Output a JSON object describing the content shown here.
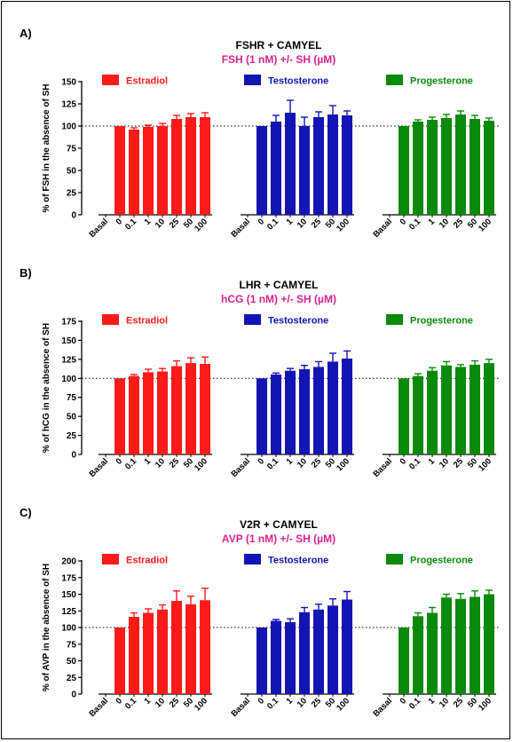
{
  "chart_data": [
    {
      "type": "bar",
      "panel_label": "A)",
      "title": "FSHR + CAMYEL",
      "subtitle": "FSH (1 nM) +/- SH (µM)",
      "ylabel": "% of FSH in the absence of SH",
      "ylim": [
        0,
        150
      ],
      "yticks": [
        0,
        25,
        50,
        75,
        100,
        125,
        150
      ],
      "reference_line": 100,
      "categories": [
        "Basal",
        "0",
        "0.1",
        "1",
        "10",
        "25",
        "50",
        "100"
      ],
      "series": [
        {
          "name": "Estradiol",
          "color": "#ff1a1a",
          "values": [
            null,
            100,
            96,
            99,
            100,
            108,
            110,
            110
          ],
          "errors": [
            0,
            0,
            2,
            2,
            3,
            4,
            4,
            5
          ]
        },
        {
          "name": "Testosterone",
          "color": "#1414b4",
          "values": [
            null,
            100,
            105,
            115,
            100,
            110,
            113,
            112
          ],
          "errors": [
            0,
            0,
            7,
            14,
            10,
            6,
            10,
            5
          ]
        },
        {
          "name": "Progesterone",
          "color": "#0a8a0a",
          "values": [
            null,
            100,
            105,
            107,
            109,
            113,
            108,
            106
          ],
          "errors": [
            0,
            0,
            2,
            3,
            4,
            4,
            4,
            3
          ]
        }
      ]
    },
    {
      "type": "bar",
      "panel_label": "B)",
      "title": "LHR + CAMYEL",
      "subtitle": "hCG (1 nM) +/- SH (µM)",
      "ylabel": "% of hCG in the absence of SH",
      "ylim": [
        0,
        175
      ],
      "yticks": [
        0,
        25,
        50,
        75,
        100,
        125,
        150,
        175
      ],
      "reference_line": 100,
      "categories": [
        "Basal",
        "0",
        "0.1",
        "1",
        "10",
        "25",
        "50",
        "100"
      ],
      "series": [
        {
          "name": "Estradiol",
          "color": "#ff1a1a",
          "values": [
            null,
            100,
            103,
            108,
            109,
            116,
            120,
            119
          ],
          "errors": [
            0,
            0,
            2,
            4,
            4,
            7,
            7,
            9
          ]
        },
        {
          "name": "Testosterone",
          "color": "#1414b4",
          "values": [
            null,
            100,
            105,
            110,
            112,
            115,
            122,
            126
          ],
          "errors": [
            0,
            0,
            2,
            3,
            5,
            7,
            11,
            10
          ]
        },
        {
          "name": "Progesterone",
          "color": "#0a8a0a",
          "values": [
            null,
            100,
            103,
            110,
            117,
            115,
            118,
            120
          ],
          "errors": [
            0,
            0,
            3,
            4,
            5,
            3,
            5,
            5
          ]
        }
      ]
    },
    {
      "type": "bar",
      "panel_label": "C)",
      "title": "V2R + CAMYEL",
      "subtitle": "AVP (1 nM) +/- SH (µM)",
      "ylabel": "% of AVP in the absence of SH",
      "ylim": [
        0,
        200
      ],
      "yticks": [
        0,
        25,
        50,
        75,
        100,
        125,
        150,
        175,
        200
      ],
      "reference_line": 100,
      "categories": [
        "Basal",
        "0",
        "0.1",
        "1",
        "10",
        "25",
        "50",
        "100"
      ],
      "series": [
        {
          "name": "Estradiol",
          "color": "#ff1a1a",
          "values": [
            null,
            100,
            116,
            122,
            127,
            140,
            135,
            141
          ],
          "errors": [
            0,
            0,
            6,
            6,
            7,
            15,
            12,
            18
          ]
        },
        {
          "name": "Testosterone",
          "color": "#1414b4",
          "values": [
            null,
            100,
            110,
            108,
            123,
            127,
            133,
            142
          ],
          "errors": [
            0,
            0,
            2,
            5,
            7,
            8,
            10,
            12
          ]
        },
        {
          "name": "Progesterone",
          "color": "#0a8a0a",
          "values": [
            null,
            100,
            117,
            122,
            145,
            143,
            146,
            150
          ],
          "errors": [
            0,
            0,
            5,
            8,
            5,
            8,
            9,
            6
          ]
        }
      ]
    }
  ]
}
